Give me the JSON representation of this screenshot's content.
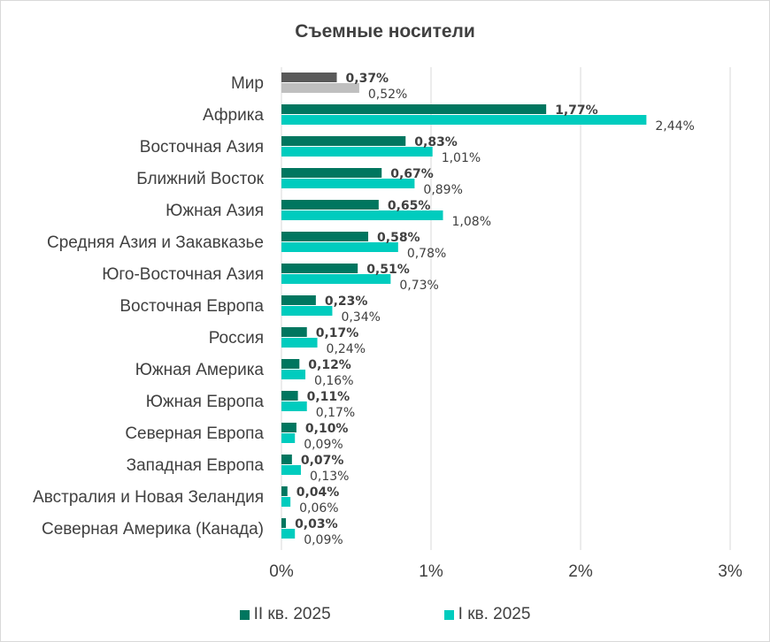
{
  "chart_data": {
    "type": "bar",
    "orientation": "horizontal",
    "title": "Съемные носители",
    "categories": [
      "Мир",
      "Африка",
      "Восточная Азия",
      "Ближний Восток",
      "Южная Азия",
      "Средняя Азия и Закавказье",
      "Юго-Восточная Азия",
      "Восточная Европа",
      "Россия",
      "Южная Америка",
      "Южная Европа",
      "Северная Европа",
      "Западная Европа",
      "Австралия и Новая Зеландия",
      "Северная Америка (Канада)"
    ],
    "series": [
      {
        "name": "II кв. 2025",
        "values": [
          0.37,
          1.77,
          0.83,
          0.67,
          0.65,
          0.58,
          0.51,
          0.23,
          0.17,
          0.12,
          0.11,
          0.1,
          0.07,
          0.04,
          0.03
        ],
        "labels": [
          "0,37%",
          "1,77%",
          "0,83%",
          "0,67%",
          "0,65%",
          "0,58%",
          "0,51%",
          "0,23%",
          "0,17%",
          "0,12%",
          "0,11%",
          "0,10%",
          "0,07%",
          "0,04%",
          "0,03%"
        ],
        "color": "#00765f",
        "highlight_color": "#595959"
      },
      {
        "name": "I кв. 2025",
        "values": [
          0.52,
          2.44,
          1.01,
          0.89,
          1.08,
          0.78,
          0.73,
          0.34,
          0.24,
          0.16,
          0.17,
          0.09,
          0.13,
          0.06,
          0.09
        ],
        "labels": [
          "0,52%",
          "2,44%",
          "1,01%",
          "0,89%",
          "1,08%",
          "0,78%",
          "0,73%",
          "0,34%",
          "0,24%",
          "0,16%",
          "0,17%",
          "0,09%",
          "0,13%",
          "0,06%",
          "0,09%"
        ],
        "color": "#00ccbe",
        "highlight_color": "#bfbfbf"
      }
    ],
    "xlim": [
      0,
      3
    ],
    "xticks": [
      "0%",
      "1%",
      "2%",
      "3%"
    ],
    "grid": true,
    "legend_position": "bottom"
  }
}
